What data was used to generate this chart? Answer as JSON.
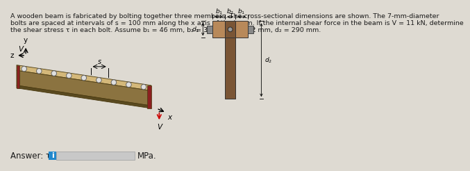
{
  "bg_color": "#dedad2",
  "text_color": "#1a1a1a",
  "title_text_lines": [
    "A wooden beam is fabricated by bolting together three members. The cross-sectional dimensions are shown. The 7-mm-diameter",
    "bolts are spaced at intervals of s = 100 mm along the x axis of the beam. If the internal shear force in the beam is V = 11 kN, determine",
    "the shear stress τ in each bolt. Assume b₁ = 46 mm, b₂ = 39 mm, d₁ = 62 mm, d₂ = 290 mm."
  ],
  "answer_label": "Answer: τ = ",
  "mpa_label": "MPa.",
  "beam_top_color": "#d4b87a",
  "beam_front_color": "#8b7340",
  "beam_bottom_color": "#5a4a20",
  "bolt_outer": "#b0b0b0",
  "bolt_inner": "#e0e0e0",
  "end_cap_color": "#8b2020",
  "cross_flange_color": "#b8895a",
  "cross_web_color": "#7a5535",
  "cross_bolt_color": "#666666",
  "answer_box_color": "#2288cc",
  "input_box_color": "#c8c8c8"
}
